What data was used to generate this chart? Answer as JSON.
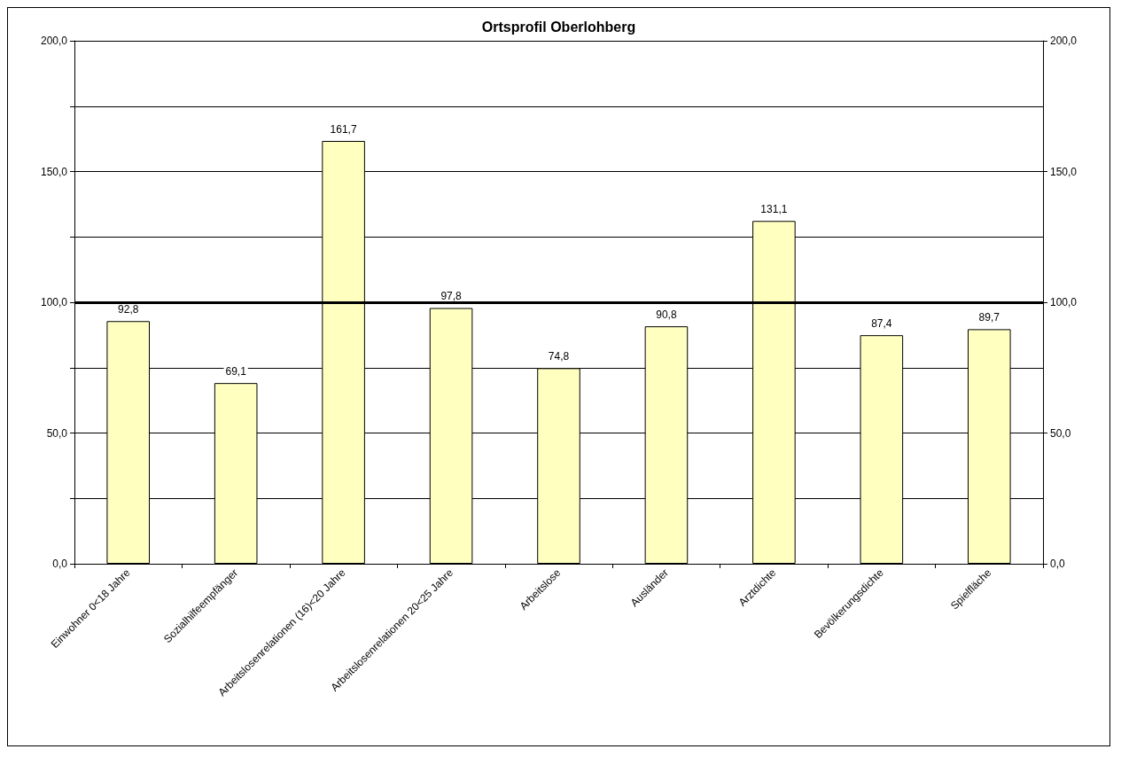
{
  "chart_data": {
    "type": "bar",
    "title": "Ortsprofil Oberlohberg",
    "categories": [
      "Einwohner 0<18 Jahre",
      "Sozialhilfeempfänger",
      "Arbeitslosenrelationen (16)<20 Jahre",
      "Arbeitslosenrelationen 20<25 Jahre",
      "Arbeitslose",
      "Ausländer",
      "Arztdichte",
      "Bevölkerungsdichte",
      "Spielfläche"
    ],
    "series": [
      {
        "color": "#ffffc0",
        "values": [
          92.8,
          69.1,
          161.7,
          97.8,
          74.8,
          90.8,
          131.1,
          87.4,
          89.7
        ],
        "value_labels": [
          "92,8",
          "69,1",
          "161,7",
          "97,8",
          "74,8",
          "90,8",
          "131,1",
          "87,4",
          "89,7"
        ]
      }
    ],
    "ylim": [
      0,
      200
    ],
    "yticks": [
      {
        "value": 0,
        "label": "0,0"
      },
      {
        "value": 25,
        "label": null
      },
      {
        "value": 50,
        "label": "50,0"
      },
      {
        "value": 75,
        "label": null
      },
      {
        "value": 100,
        "label": "100,0"
      },
      {
        "value": 125,
        "label": null
      },
      {
        "value": 150,
        "label": "150,0"
      },
      {
        "value": 175,
        "label": null
      },
      {
        "value": 200,
        "label": "200,0"
      }
    ],
    "y2lim": [
      0,
      200
    ],
    "y2ticks": [
      {
        "value": 0,
        "label": "0,0"
      },
      {
        "value": 50,
        "label": "50,0"
      },
      {
        "value": 100,
        "label": "100,0"
      },
      {
        "value": 150,
        "label": "150,0"
      },
      {
        "value": 200,
        "label": "200,0"
      }
    ],
    "ref_lines": [
      {
        "axis": "y",
        "value": 100,
        "color": "#000000"
      }
    ],
    "grid": "y"
  }
}
